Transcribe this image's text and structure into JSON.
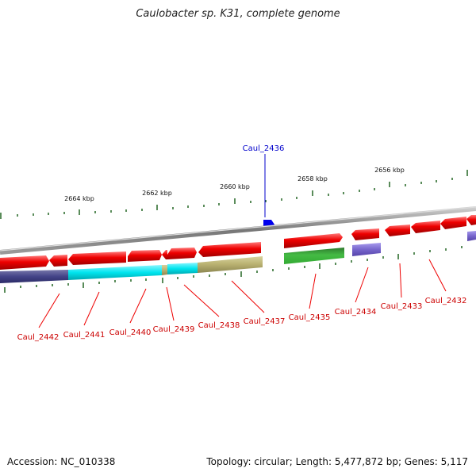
{
  "header": {
    "title": "Caulobacter sp. K31, complete genome"
  },
  "footer": {
    "accession": "Accession: NC_010338",
    "topology": "Topology: circular; Length: 5,477,872 bp; Genes: 5,117"
  },
  "scale_ticks": [
    "2664 kbp",
    "2662 kbp",
    "2660 kbp",
    "2658 kbp",
    "2656 kbp"
  ],
  "highlight_gene": "Caul_2436",
  "gene_labels": [
    "Caul_2442",
    "Caul_2441",
    "Caul_2440",
    "Caul_2439",
    "Caul_2438",
    "Caul_2437",
    "Caul_2435",
    "Caul_2434",
    "Caul_2433",
    "Caul_2432"
  ],
  "colors": {
    "forward_gene": "#ee0000",
    "backbone": "#888888",
    "navy": "#444488",
    "cyan": "#00e5ee",
    "khaki": "#b8b070",
    "green": "#33aa33",
    "lavender": "#7766cc",
    "highlight": "#0000ee",
    "tick": "#226622"
  }
}
